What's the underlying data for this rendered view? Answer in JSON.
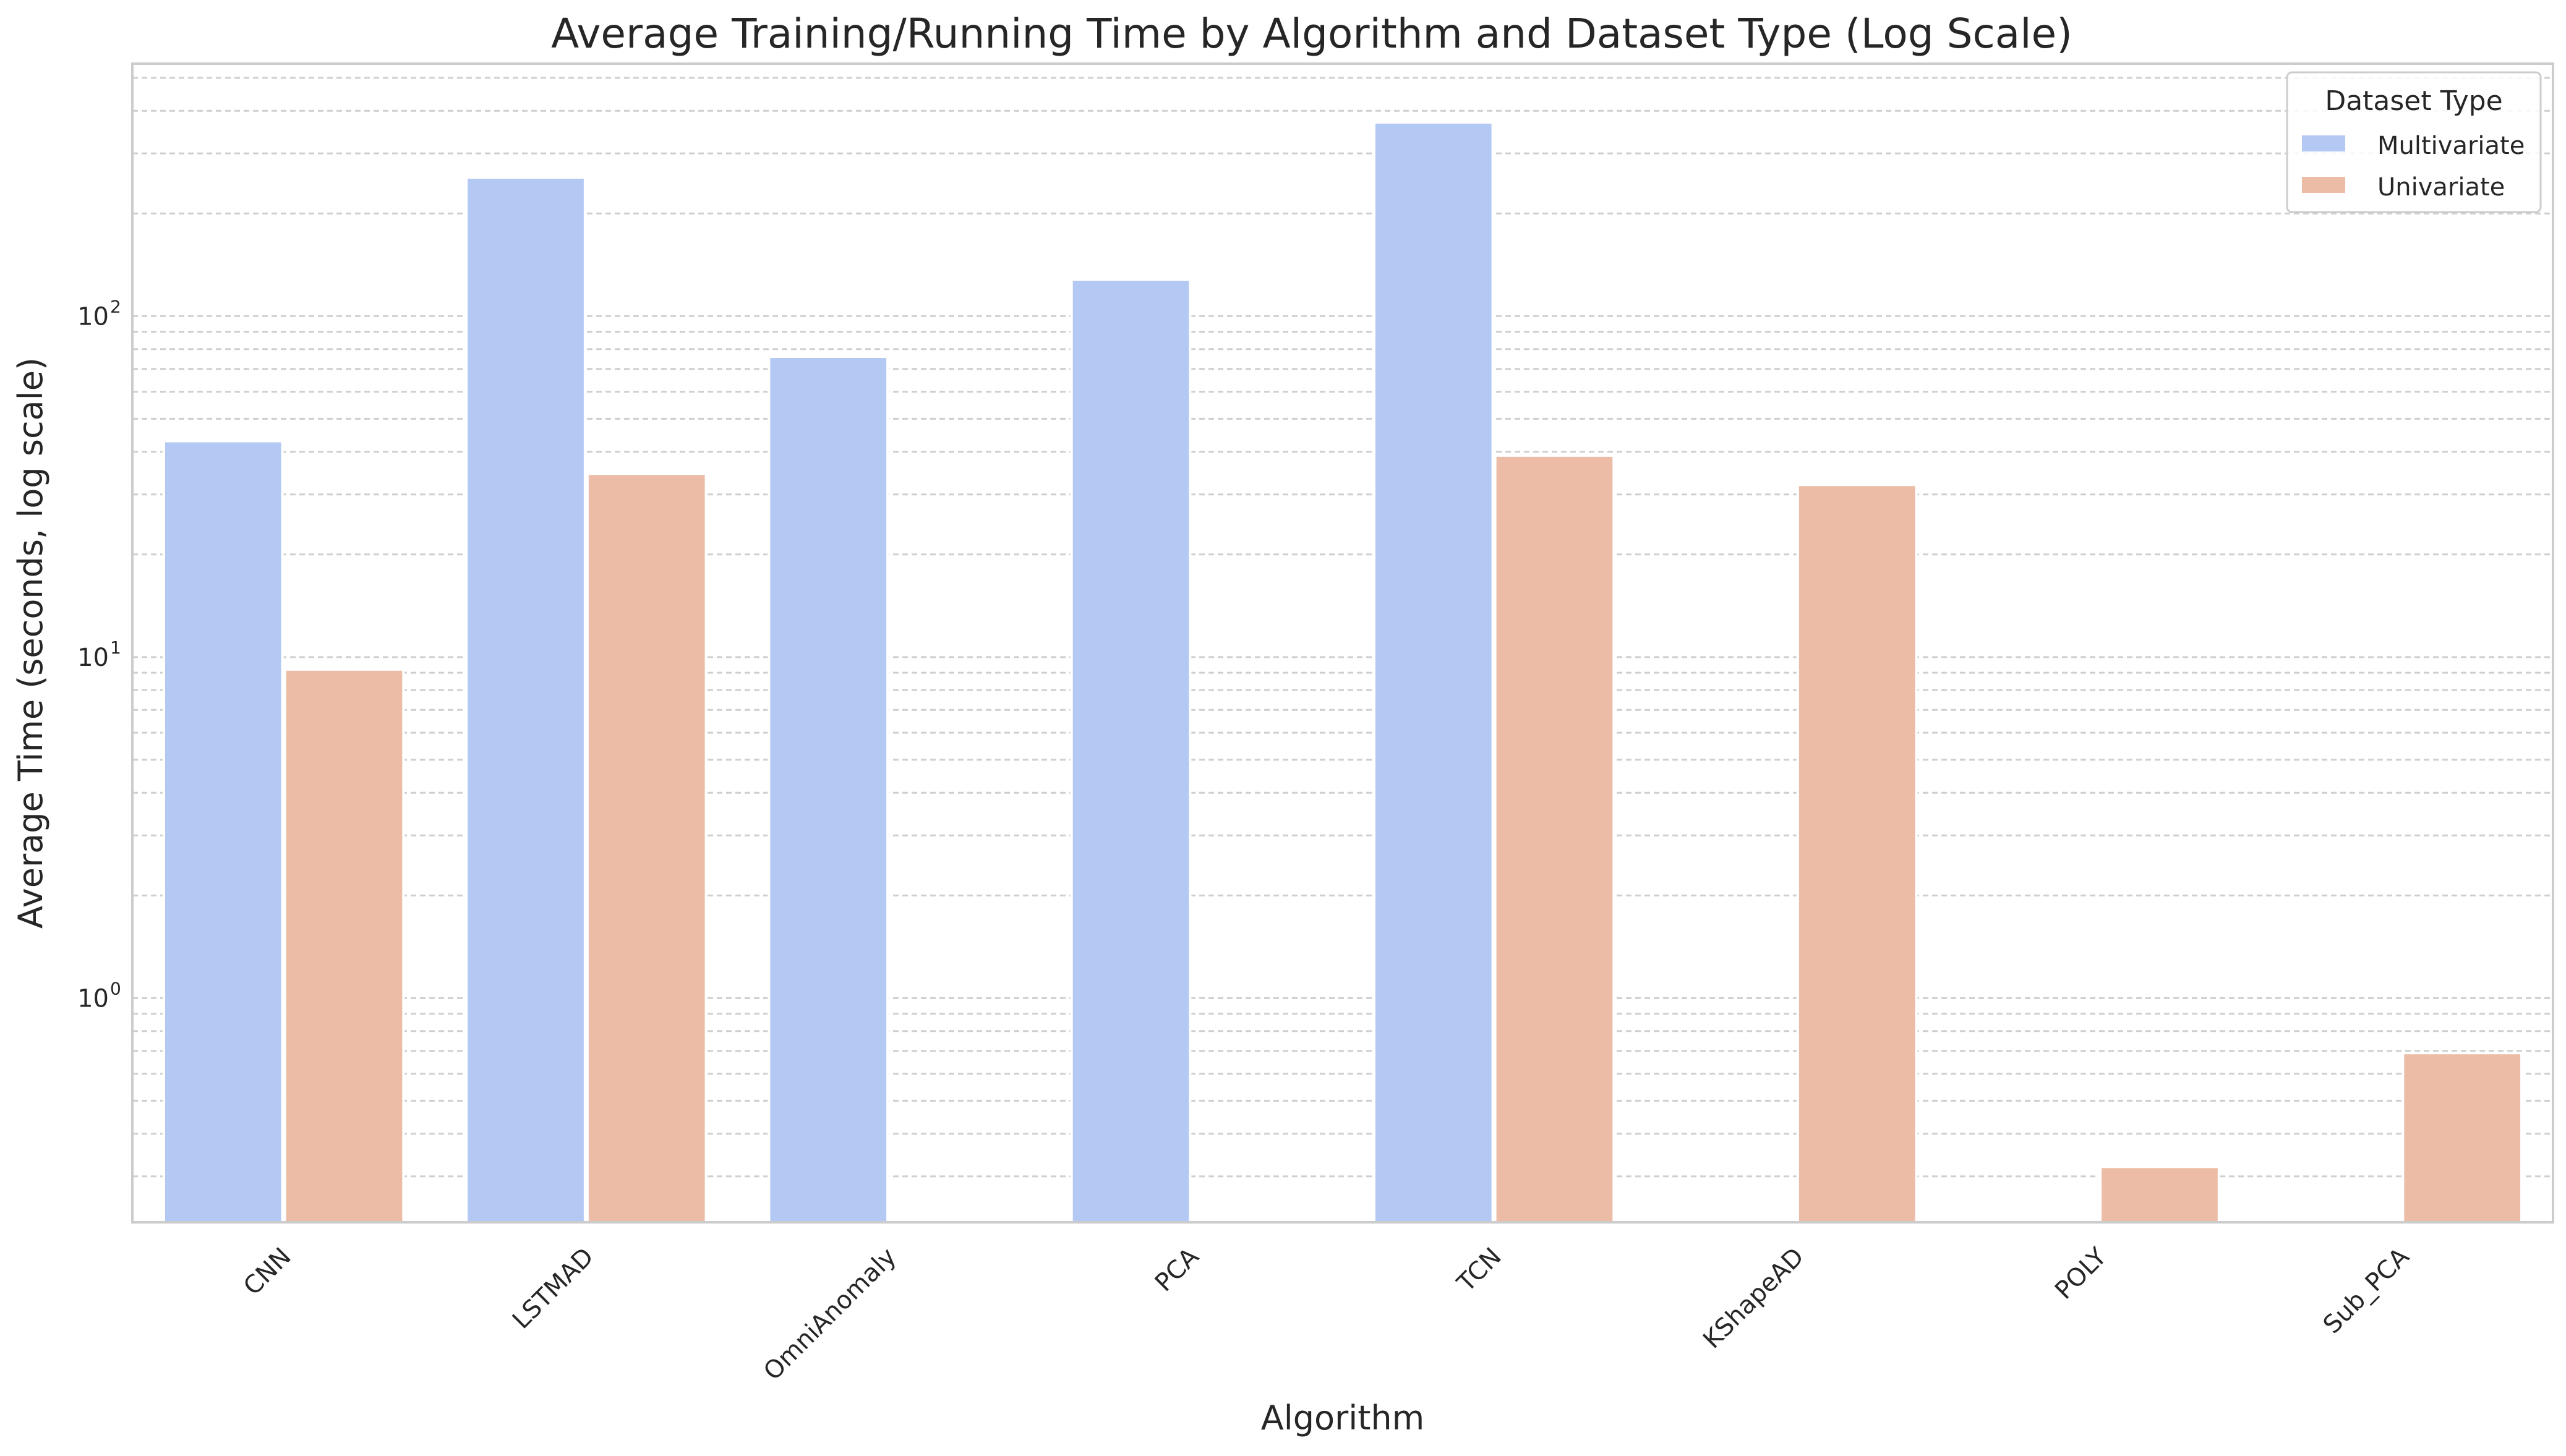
{
  "chart_data": {
    "type": "bar",
    "title": "Average Training/Running Time by Algorithm and Dataset Type (Log Scale)",
    "xlabel": "Algorithm",
    "ylabel": "Average Time (seconds, log scale)",
    "yscale": "log",
    "ylim": [
      0.22,
      550
    ],
    "yticks": [
      {
        "value": 1,
        "base": "10",
        "exp": "0"
      },
      {
        "value": 10,
        "base": "10",
        "exp": "1"
      },
      {
        "value": 100,
        "base": "10",
        "exp": "2"
      }
    ],
    "grid": true,
    "legend_title": "Dataset Type",
    "legend_position": "top-right",
    "categories": [
      "CNN",
      "LSTMAD",
      "OmniAnomaly",
      "PCA",
      "TCN",
      "KShapeAD",
      "POLY",
      "Sub_PCA"
    ],
    "series": [
      {
        "name": "Multivariate",
        "color": "#b3c9f4",
        "values": [
          43,
          255,
          76,
          128,
          370,
          null,
          null,
          null
        ]
      },
      {
        "name": "Univariate",
        "color": "#ecbca7",
        "values": [
          9.2,
          34.5,
          null,
          null,
          39,
          32,
          0.32,
          0.69
        ]
      }
    ]
  }
}
